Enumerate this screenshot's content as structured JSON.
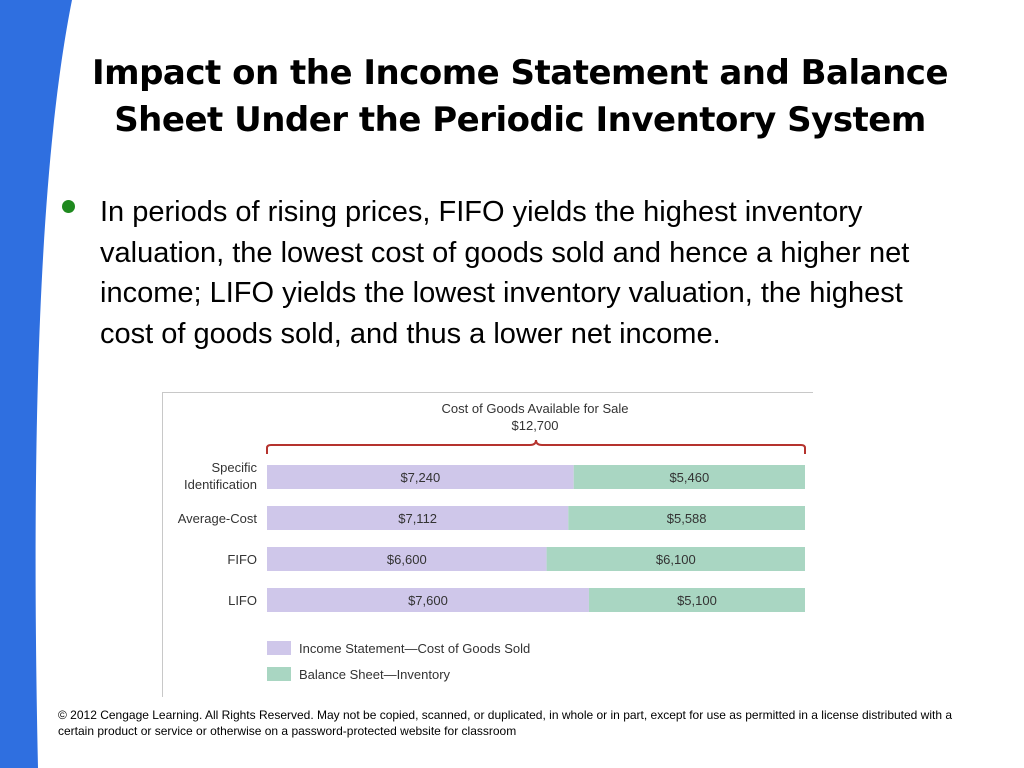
{
  "slide": {
    "title": "Impact on the Income Statement and Balance Sheet Under the Periodic Inventory System",
    "bullet": "In periods of rising prices, FIFO yields the highest inventory valuation, the lowest cost of goods sold and hence a higher net income; LIFO yields the lowest inventory valuation, the highest cost of goods sold, and thus a lower net income.",
    "footer": "© 2012 Cengage Learning. All Rights Reserved. May not be copied, scanned, or duplicated, in whole or in part, except for use as permitted in a license distributed with a certain product or service or otherwise on a password-protected website for classroom"
  },
  "colors": {
    "accent_blue": "#2f6fe0",
    "bullet_green": "#1f8a1f",
    "cogs_purple": "#cfc7ea",
    "inventory_green": "#a9d6c2",
    "brace_red": "#b5332e"
  },
  "chart_data": {
    "type": "bar",
    "orientation": "horizontal",
    "stacked": true,
    "title": "Cost of Goods Available for Sale",
    "subtitle": "$12,700",
    "total": 12700,
    "categories": [
      "Specific Identification",
      "Average-Cost",
      "FIFO",
      "LIFO"
    ],
    "series": [
      {
        "name": "Income Statement—Cost of Goods Sold",
        "values": [
          7240,
          7112,
          6600,
          7600
        ],
        "labels": [
          "$7,240",
          "$7,112",
          "$6,600",
          "$7,600"
        ]
      },
      {
        "name": "Balance Sheet—Inventory",
        "values": [
          5460,
          5588,
          6100,
          5100
        ],
        "labels": [
          "$5,460",
          "$5,588",
          "$6,100",
          "$5,100"
        ]
      }
    ],
    "legend_position": "bottom-left",
    "grid": false
  }
}
